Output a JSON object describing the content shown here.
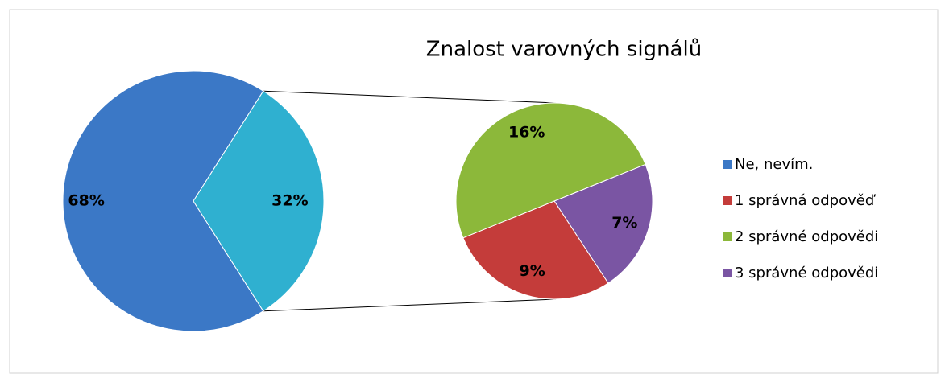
{
  "chart_data": {
    "type": "pie_of_pie",
    "title": "Znalost varovných signálů",
    "categories": [
      "Ne, nevím.",
      "1 správná odpověď",
      "2 správné odpovědi",
      "3 správné odpovědi"
    ],
    "values": [
      68,
      9,
      16,
      7
    ],
    "value_labels": [
      "68%",
      "9%",
      "16%",
      "7%"
    ],
    "colors": [
      "#3b78c6",
      "#c43c3a",
      "#8cb83a",
      "#7a55a3"
    ],
    "other_value": 32,
    "other_value_label": "32%",
    "other_color": "#2fb0d0",
    "legend": "right"
  }
}
